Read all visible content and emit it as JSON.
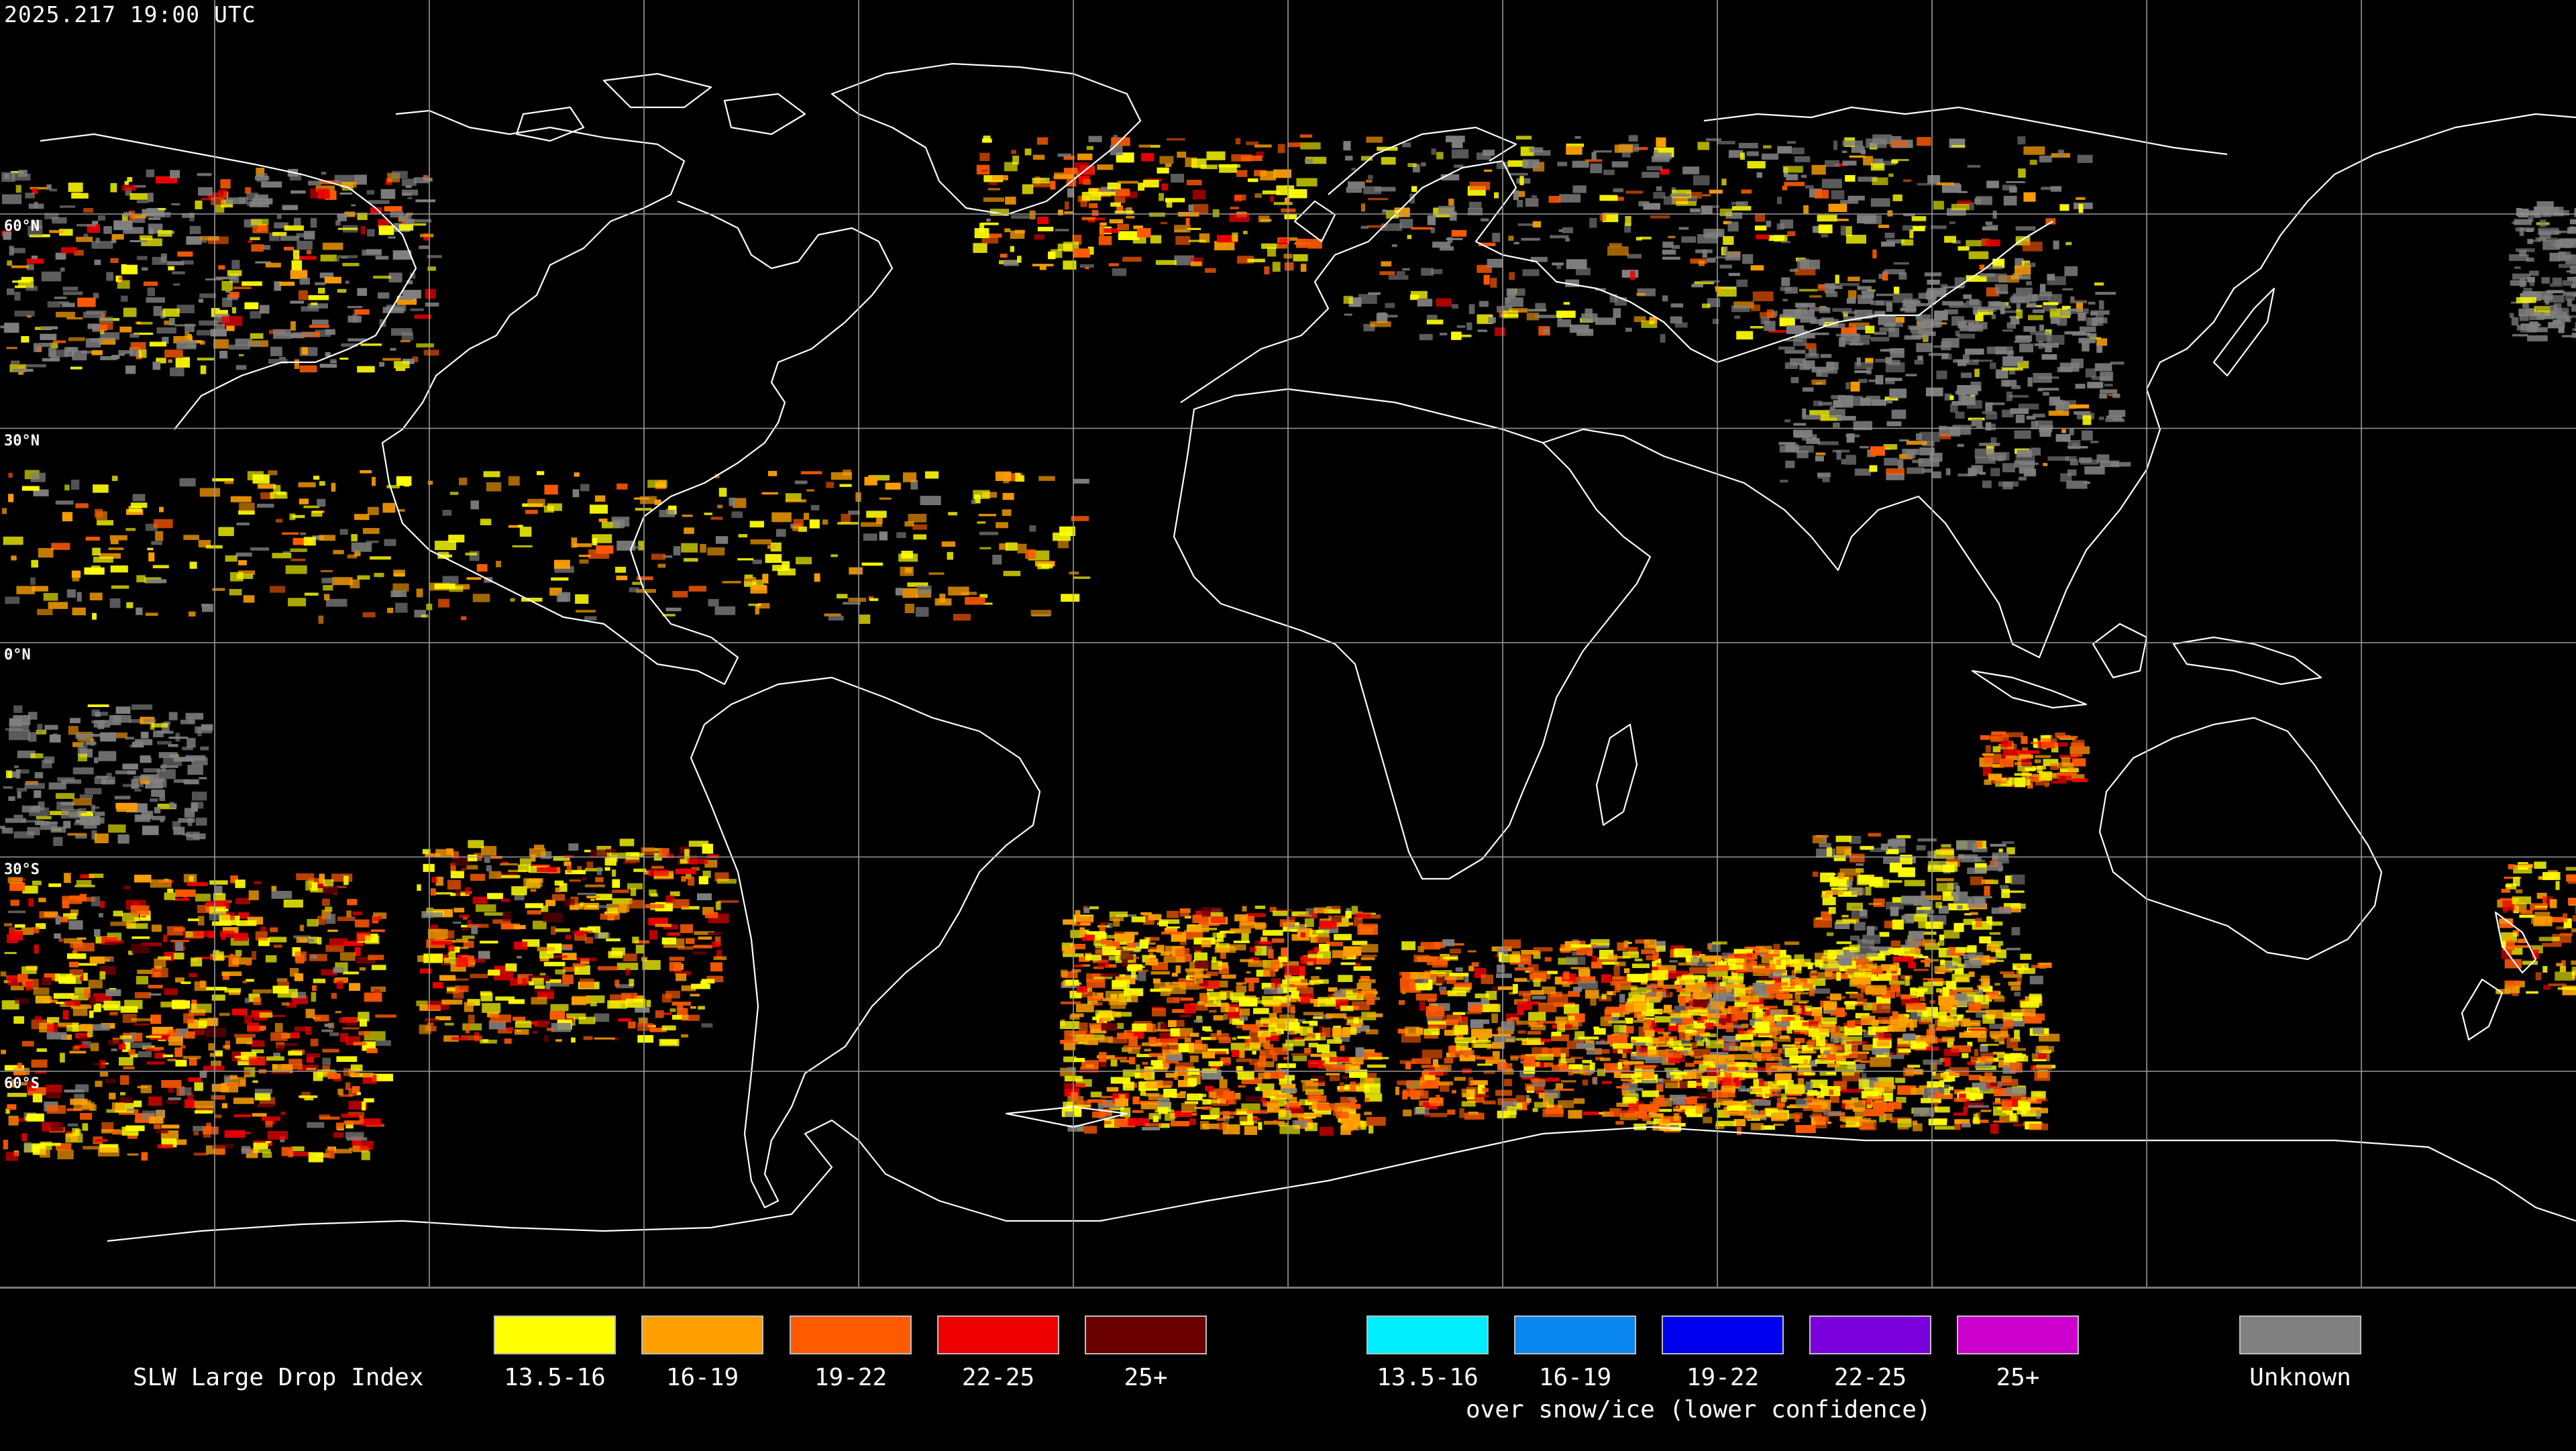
{
  "header": {
    "timestamp": "2025.217 19:00 UTC"
  },
  "map": {
    "projection": "equirectangular",
    "background": "#000000",
    "grid_color": "#9a9a9a",
    "coast_color": "#ffffff",
    "lat_labels": [
      {
        "lat": 60,
        "text": "60°N"
      },
      {
        "lat": 30,
        "text": "30°N"
      },
      {
        "lat": 0,
        "text": "0°N"
      },
      {
        "lat": -30,
        "text": "30°S"
      },
      {
        "lat": -60,
        "text": "60°S"
      }
    ]
  },
  "legend": {
    "title": "SLW Large Drop Index",
    "subtitle": "over snow/ice (lower confidence)",
    "categories": [
      {
        "label": "13.5-16",
        "color": "#ffff00",
        "group": "standard"
      },
      {
        "label": "16-19",
        "color": "#ffa000",
        "group": "standard"
      },
      {
        "label": "19-22",
        "color": "#ff5a00",
        "group": "standard"
      },
      {
        "label": "22-25",
        "color": "#ee0000",
        "group": "standard"
      },
      {
        "label": "25+",
        "color": "#6a0000",
        "group": "standard"
      },
      {
        "label": "13.5-16",
        "color": "#00eeff",
        "group": "snow_ice"
      },
      {
        "label": "16-19",
        "color": "#0a86f0",
        "group": "snow_ice"
      },
      {
        "label": "19-22",
        "color": "#0000ee",
        "group": "snow_ice"
      },
      {
        "label": "22-25",
        "color": "#7a00dd",
        "group": "snow_ice"
      },
      {
        "label": "25+",
        "color": "#cc00cc",
        "group": "snow_ice"
      },
      {
        "label": "Unknown",
        "color": "#808080",
        "group": "unknown"
      }
    ]
  }
}
